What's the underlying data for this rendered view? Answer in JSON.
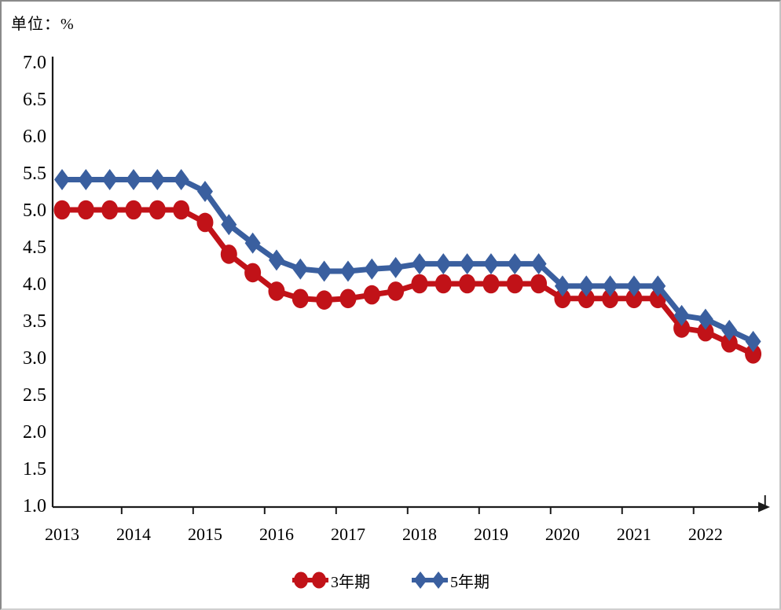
{
  "chart_data": {
    "type": "line",
    "unit_label": "单位：%",
    "categories": [
      "2013",
      "2014",
      "2015",
      "2016",
      "2017",
      "2018",
      "2019",
      "2020",
      "2021",
      "2022"
    ],
    "points_per_year": 3,
    "ylim": [
      1.0,
      7.0
    ],
    "ytick_step": 0.5,
    "ytick_labels": [
      "7.0",
      "6.5",
      "6.0",
      "5.5",
      "5.0",
      "4.5",
      "4.0",
      "3.5",
      "3.0",
      "2.5",
      "2.0",
      "1.5",
      "1.0"
    ],
    "grid": false,
    "legend_position": "bottom-center",
    "axis_color": "#1a1a1a",
    "series": [
      {
        "name": "3年期",
        "marker": "circle",
        "color": "#c11218",
        "values": [
          5.0,
          5.0,
          5.0,
          5.0,
          5.0,
          5.0,
          4.83,
          4.4,
          4.15,
          3.9,
          3.8,
          3.78,
          3.8,
          3.85,
          3.9,
          4.0,
          4.0,
          4.0,
          4.0,
          4.0,
          4.0,
          3.8,
          3.8,
          3.8,
          3.8,
          3.8,
          3.4,
          3.35,
          3.2,
          3.05
        ]
      },
      {
        "name": "5年期",
        "marker": "diamond",
        "color": "#3a5f9f",
        "values": [
          5.41,
          5.41,
          5.41,
          5.41,
          5.41,
          5.41,
          5.25,
          4.8,
          4.55,
          4.32,
          4.2,
          4.17,
          4.17,
          4.2,
          4.22,
          4.27,
          4.27,
          4.27,
          4.27,
          4.27,
          4.27,
          3.97,
          3.97,
          3.97,
          3.97,
          3.97,
          3.57,
          3.52,
          3.37,
          3.22
        ]
      }
    ]
  }
}
